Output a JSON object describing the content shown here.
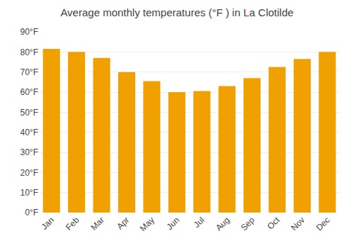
{
  "chart_data": {
    "type": "bar",
    "title": "Average monthly temperatures (°F ) in La Clotilde",
    "categories": [
      "Jan",
      "Feb",
      "Mar",
      "Apr",
      "May",
      "Jun",
      "Jul",
      "Aug",
      "Sep",
      "Oct",
      "Nov",
      "Dec"
    ],
    "values": [
      81.5,
      80,
      77,
      70,
      65.5,
      60,
      60.5,
      63,
      67,
      72.5,
      76.5,
      80
    ],
    "color": "#F0A000",
    "ylim": [
      0,
      90
    ],
    "yticks": [
      {
        "value": 0,
        "label": "0°F"
      },
      {
        "value": 10,
        "label": "10°F"
      },
      {
        "value": 20,
        "label": "20°F"
      },
      {
        "value": 30,
        "label": "30°F"
      },
      {
        "value": 40,
        "label": "40°F"
      },
      {
        "value": 50,
        "label": "50°F"
      },
      {
        "value": 60,
        "label": "60°F"
      },
      {
        "value": 70,
        "label": "70°F"
      },
      {
        "value": 80,
        "label": "80°F"
      },
      {
        "value": 90,
        "label": "90°F"
      }
    ],
    "grid": true
  }
}
